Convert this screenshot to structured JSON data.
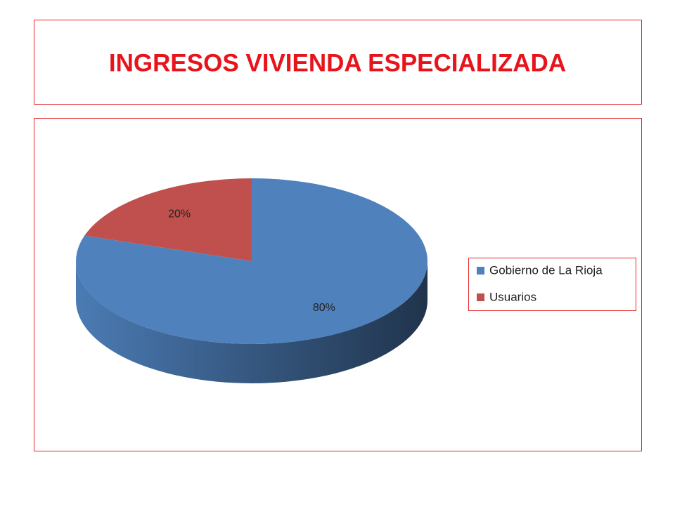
{
  "chart_data": {
    "type": "pie3d",
    "title": "INGRESOS VIVIENDA ESPECIALIZADA",
    "categories": [
      "Gobierno de La Rioja",
      "Usuarios"
    ],
    "values": [
      80,
      20
    ],
    "value_labels": [
      "80%",
      "20%"
    ],
    "colors": [
      "#4f81bd",
      "#c0504d"
    ],
    "legend": "right"
  }
}
